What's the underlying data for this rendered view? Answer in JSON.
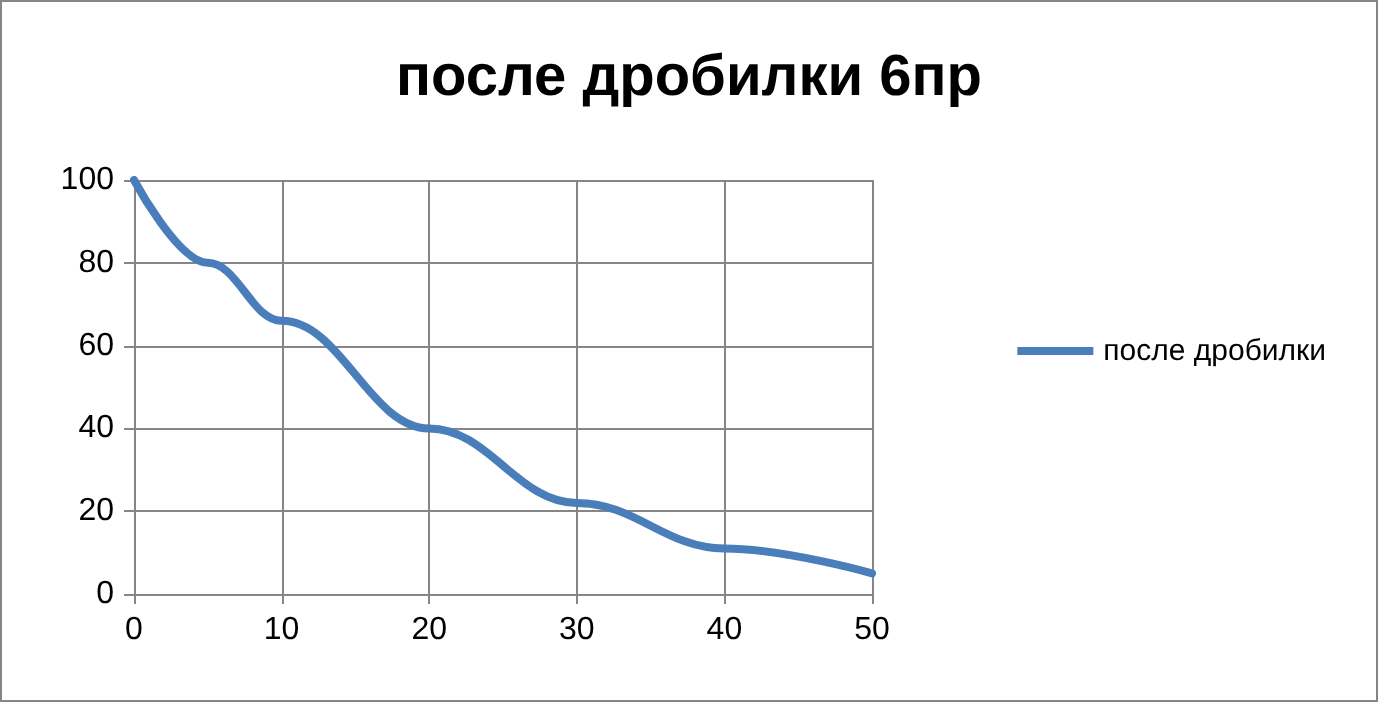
{
  "chart_data": {
    "type": "line",
    "title": "после дробилки 6пр",
    "x": [
      0,
      5,
      10,
      20,
      30,
      40,
      50
    ],
    "series": [
      {
        "name": "после дробилки",
        "color": "#4a7ebb",
        "values": [
          100,
          80,
          66,
          40,
          22,
          11,
          5
        ]
      }
    ],
    "xlim": [
      0,
      50
    ],
    "xticks": [
      0,
      10,
      20,
      30,
      40,
      50
    ],
    "ylim": [
      0,
      100
    ],
    "yticks": [
      0,
      20,
      40,
      60,
      80,
      100
    ],
    "grid": true,
    "legend": "right",
    "marker": "none",
    "line_style": "solid"
  }
}
